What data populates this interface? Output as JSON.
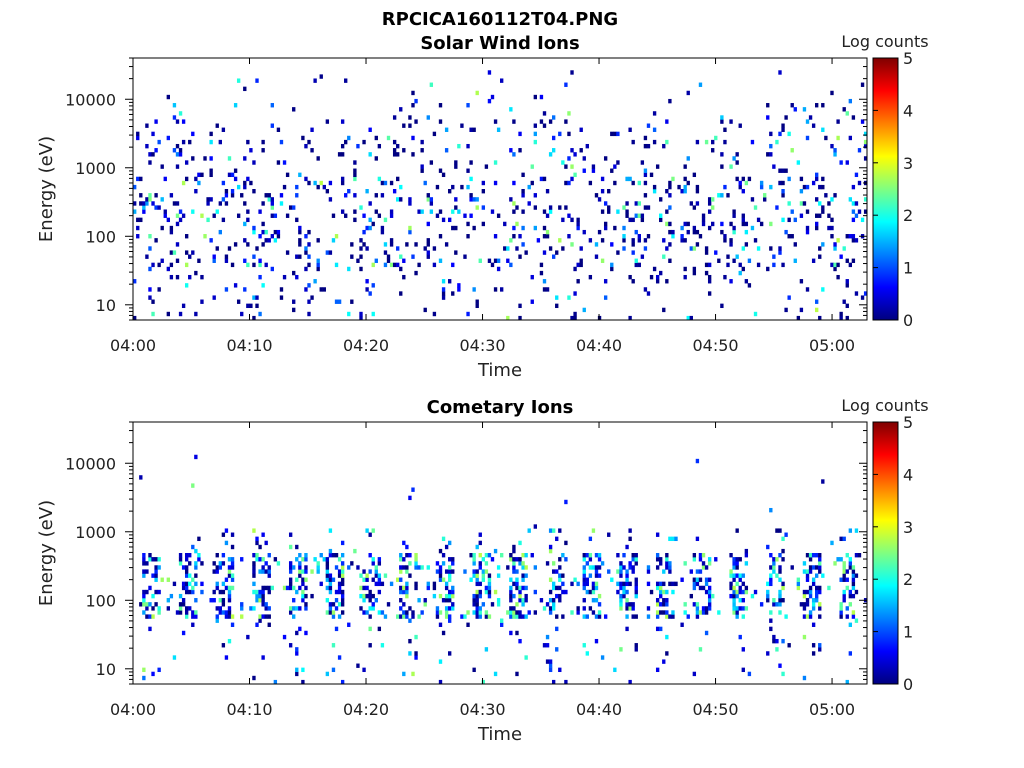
{
  "figure_title": "RPCICA160112T04.PNG",
  "chart_data": [
    {
      "type": "heatmap",
      "title": "Solar Wind Ions",
      "xlabel": "Time",
      "ylabel": "Energy (eV)",
      "x_ticks": [
        "04:00",
        "04:10",
        "04:20",
        "04:30",
        "04:40",
        "04:50",
        "05:00"
      ],
      "xlim_minutes": [
        0,
        63
      ],
      "y_ticks": [
        10,
        100,
        1000,
        10000
      ],
      "ylim": [
        6,
        40000
      ],
      "y_scale": "log",
      "colorbar": {
        "label": "Log counts",
        "range": [
          0,
          5
        ],
        "ticks": [
          0,
          1,
          2,
          3,
          4,
          5
        ]
      },
      "seed": 12345,
      "profile": "solar"
    },
    {
      "type": "heatmap",
      "title": "Cometary Ions",
      "xlabel": "Time",
      "ylabel": "Energy (eV)",
      "x_ticks": [
        "04:00",
        "04:10",
        "04:20",
        "04:30",
        "04:40",
        "04:50",
        "05:00"
      ],
      "xlim_minutes": [
        0,
        63
      ],
      "y_ticks": [
        10,
        100,
        1000,
        10000
      ],
      "ylim": [
        6,
        40000
      ],
      "y_scale": "log",
      "colorbar": {
        "label": "Log counts",
        "range": [
          0,
          5
        ],
        "ticks": [
          0,
          1,
          2,
          3,
          4,
          5
        ]
      },
      "seed": 67890,
      "profile": "cometary"
    }
  ]
}
